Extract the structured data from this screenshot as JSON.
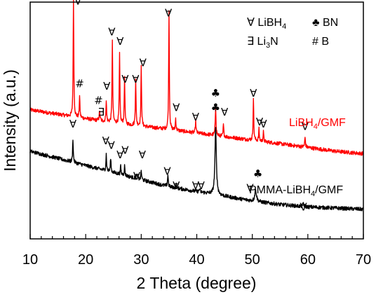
{
  "chart_data": {
    "type": "line",
    "xlabel": "2 Theta (degree)",
    "ylabel": "Intensity (a.u.)",
    "xlim": [
      10,
      70
    ],
    "x_ticks": [
      "10",
      "20",
      "30",
      "40",
      "50",
      "60",
      "70"
    ],
    "y_ticks_labeled": false,
    "grid": false,
    "legend_position": "top-right",
    "legend": [
      {
        "symbol": "∀",
        "text": "LiBH",
        "sub": "4"
      },
      {
        "symbol": "♣",
        "text": "BN",
        "sub": ""
      },
      {
        "symbol": "∃",
        "text": "Li",
        "sub": "3",
        "suffix": "N"
      },
      {
        "symbol": "#",
        "text": "B",
        "sub": ""
      }
    ],
    "series": [
      {
        "name_main": "LiBH",
        "name_sub": "4",
        "name_suffix": "/GMF",
        "color": "#ff0000",
        "baseline": [
          [
            10,
            0.545
          ],
          [
            18,
            0.515
          ],
          [
            25,
            0.49
          ],
          [
            35,
            0.462
          ],
          [
            45,
            0.432
          ],
          [
            55,
            0.402
          ],
          [
            65,
            0.37
          ],
          [
            70,
            0.36
          ]
        ],
        "peaks": [
          [
            17.8,
            0.5,
            0.07
          ],
          [
            18.9,
            0.09,
            0.07
          ],
          [
            22.5,
            0.035,
            0.1
          ],
          [
            23.7,
            0.09,
            0.07
          ],
          [
            24.8,
            0.345,
            0.07
          ],
          [
            26.1,
            0.295,
            0.07
          ],
          [
            27.0,
            0.2,
            0.07
          ],
          [
            29.0,
            0.2,
            0.07
          ],
          [
            30.0,
            0.25,
            0.07
          ],
          [
            35.0,
            0.5,
            0.07
          ],
          [
            36.2,
            0.05,
            0.07
          ],
          [
            39.8,
            0.05,
            0.07
          ],
          [
            43.4,
            0.12,
            0.08
          ],
          [
            44.8,
            0.05,
            0.07
          ],
          [
            50.2,
            0.18,
            0.07
          ],
          [
            51.2,
            0.05,
            0.07
          ],
          [
            52.0,
            0.04,
            0.07
          ],
          [
            59.5,
            0.04,
            0.08
          ]
        ],
        "noise": 0.008
      },
      {
        "name_main": "PMMA-LiBH",
        "name_sub": "4",
        "name_suffix": "/GMF",
        "color": "#000000",
        "baseline": [
          [
            10,
            0.37
          ],
          [
            15,
            0.34
          ],
          [
            20,
            0.31
          ],
          [
            25,
            0.28
          ],
          [
            30,
            0.25
          ],
          [
            35,
            0.22
          ],
          [
            40,
            0.2
          ],
          [
            45,
            0.18
          ],
          [
            50,
            0.16
          ],
          [
            55,
            0.145
          ],
          [
            60,
            0.135
          ],
          [
            65,
            0.13
          ],
          [
            70,
            0.125
          ]
        ],
        "peaks": [
          [
            17.7,
            0.1,
            0.07
          ],
          [
            23.7,
            0.07,
            0.07
          ],
          [
            24.5,
            0.06,
            0.07
          ],
          [
            26.3,
            0.035,
            0.07
          ],
          [
            27.0,
            0.04,
            0.07
          ],
          [
            29.2,
            0.02,
            0.07
          ],
          [
            30.0,
            0.04,
            0.07
          ],
          [
            34.8,
            0.05,
            0.08
          ],
          [
            36.3,
            0.015,
            0.07
          ],
          [
            40.5,
            0.015,
            0.07
          ],
          [
            43.4,
            0.28,
            0.15
          ],
          [
            50.6,
            0.05,
            0.18
          ],
          [
            59.2,
            0.015,
            0.1
          ]
        ],
        "noise": 0.008
      }
    ],
    "annotations_red": [
      {
        "x": 18.6,
        "y": 0.99,
        "symbol": "∀"
      },
      {
        "x": 18.9,
        "y": 0.64,
        "symbol": "#"
      },
      {
        "x": 22.3,
        "y": 0.57,
        "symbol": "#"
      },
      {
        "x": 22.8,
        "y": 0.52,
        "symbol": "∃"
      },
      {
        "x": 23.8,
        "y": 0.63,
        "symbol": "∀"
      },
      {
        "x": 24.7,
        "y": 0.86,
        "symbol": "∀"
      },
      {
        "x": 26.2,
        "y": 0.82,
        "symbol": "∀"
      },
      {
        "x": 27.1,
        "y": 0.66,
        "symbol": "∀"
      },
      {
        "x": 29.0,
        "y": 0.66,
        "symbol": "∀"
      },
      {
        "x": 30.3,
        "y": 0.73,
        "symbol": "∀"
      },
      {
        "x": 34.9,
        "y": 0.94,
        "symbol": "∀"
      },
      {
        "x": 36.3,
        "y": 0.54,
        "symbol": "∀"
      },
      {
        "x": 39.8,
        "y": 0.5,
        "symbol": "∀"
      },
      {
        "x": 45.0,
        "y": 0.52,
        "symbol": "∀"
      },
      {
        "x": 50.2,
        "y": 0.6,
        "symbol": "∀"
      },
      {
        "x": 51.3,
        "y": 0.48,
        "symbol": "∀"
      },
      {
        "x": 52.0,
        "y": 0.47,
        "symbol": "∀"
      },
      {
        "x": 59.5,
        "y": 0.46,
        "symbol": "∀"
      }
    ],
    "annotations_black": [
      {
        "x": 17.7,
        "y": 0.47,
        "symbol": "∀"
      },
      {
        "x": 23.6,
        "y": 0.4,
        "symbol": "∀"
      },
      {
        "x": 24.6,
        "y": 0.38,
        "symbol": "∀"
      },
      {
        "x": 26.2,
        "y": 0.34,
        "symbol": "∀"
      },
      {
        "x": 27.1,
        "y": 0.36,
        "symbol": "∀"
      },
      {
        "x": 29.2,
        "y": 0.25,
        "symbol": "∀"
      },
      {
        "x": 30.2,
        "y": 0.34,
        "symbol": "∀"
      },
      {
        "x": 34.7,
        "y": 0.27,
        "symbol": "∀"
      },
      {
        "x": 36.3,
        "y": 0.21,
        "symbol": "∀"
      },
      {
        "x": 39.8,
        "y": 0.21,
        "symbol": "∀"
      },
      {
        "x": 40.8,
        "y": 0.21,
        "symbol": "∀"
      },
      {
        "x": 49.6,
        "y": 0.2,
        "symbol": "∀"
      },
      {
        "x": 59.2,
        "y": 0.12,
        "symbol": "∀"
      }
    ],
    "annotations_bn": [
      {
        "x": 43.4,
        "y": 0.6,
        "symbol": "♣"
      },
      {
        "x": 43.4,
        "y": 0.54,
        "symbol": "♣"
      },
      {
        "x": 51.0,
        "y": 0.26,
        "symbol": "♣"
      }
    ]
  }
}
